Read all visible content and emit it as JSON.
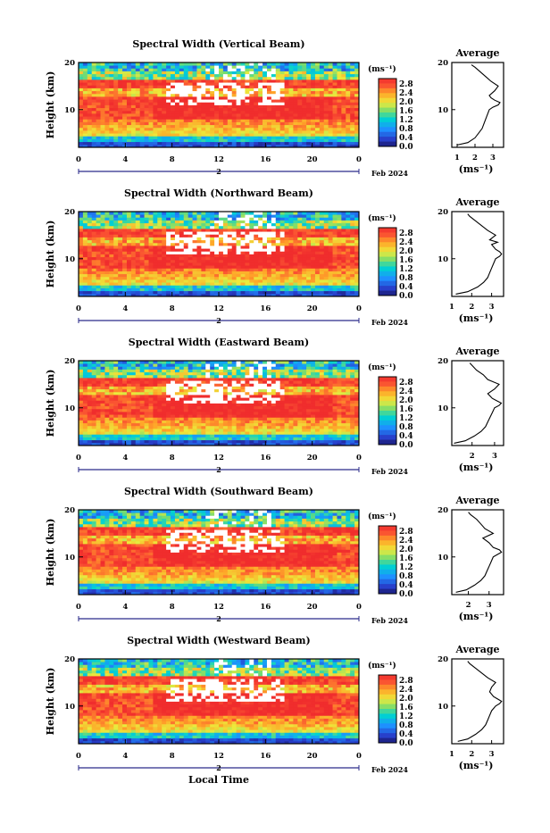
{
  "figure": {
    "xlabel": "Local Time",
    "colorbar": {
      "unit": "(ms⁻¹)",
      "ticks": [
        "2.8",
        "2.4",
        "2.0",
        "1.6",
        "1.2",
        "0.8",
        "0.4",
        "0.0"
      ]
    },
    "avg_title": "Average",
    "avg_xlabel": "(ms⁻¹)",
    "date_label": "Feb 2024",
    "day_label": "2"
  },
  "chart_data": [
    {
      "type": "heatmap",
      "title": "Spectral Width (Vertical Beam)",
      "ylabel": "Height (km)",
      "x_ticks": [
        "0",
        "4",
        "8",
        "12",
        "16",
        "20",
        "0"
      ],
      "y_ticks": [
        "20",
        "10"
      ],
      "xlim": [
        0,
        24
      ],
      "ylim": [
        2,
        20
      ],
      "color_range": [
        0.0,
        2.8
      ],
      "profile": {
        "title": "Average",
        "x_ticks": [
          "1",
          "2",
          "3"
        ],
        "xlim": [
          0.7,
          3.6
        ],
        "heights": [
          2.5,
          3,
          4,
          5,
          6,
          7,
          8,
          9,
          10,
          10.5,
          11,
          11.5,
          12,
          12.5,
          13,
          14,
          15,
          16,
          17,
          18,
          19,
          19.5
        ],
        "values": [
          1.0,
          1.6,
          2.0,
          2.2,
          2.4,
          2.5,
          2.6,
          2.7,
          2.8,
          3.0,
          3.3,
          3.4,
          3.1,
          2.9,
          2.8,
          3.1,
          3.3,
          2.9,
          2.6,
          2.3,
          2.0,
          1.8
        ]
      }
    },
    {
      "type": "heatmap",
      "title": "Spectral Width (Northward Beam)",
      "ylabel": "Height (km)",
      "x_ticks": [
        "0",
        "4",
        "8",
        "12",
        "16",
        "20",
        "0"
      ],
      "y_ticks": [
        "20",
        "10"
      ],
      "xlim": [
        0,
        24
      ],
      "ylim": [
        2,
        20
      ],
      "color_range": [
        0.0,
        2.8
      ],
      "profile": {
        "title": "Average",
        "x_ticks": [
          "1",
          "2",
          "3"
        ],
        "xlim": [
          1.0,
          3.6
        ],
        "heights": [
          2.5,
          3,
          4,
          5,
          6,
          7,
          8,
          9,
          10,
          10.5,
          11,
          11.5,
          12,
          13,
          13.5,
          14,
          15,
          16,
          17,
          18,
          19,
          19.5
        ],
        "values": [
          1.2,
          1.8,
          2.3,
          2.6,
          2.8,
          2.9,
          3.0,
          3.1,
          3.2,
          3.4,
          3.5,
          3.4,
          3.2,
          3.0,
          3.3,
          2.9,
          3.2,
          2.8,
          2.5,
          2.2,
          1.9,
          1.8
        ]
      }
    },
    {
      "type": "heatmap",
      "title": "Spectral Width (Eastward Beam)",
      "ylabel": "Height (km)",
      "x_ticks": [
        "0",
        "4",
        "8",
        "12",
        "16",
        "20",
        "0"
      ],
      "y_ticks": [
        "20",
        "10"
      ],
      "xlim": [
        0,
        24
      ],
      "ylim": [
        2,
        20
      ],
      "color_range": [
        0.0,
        2.8
      ],
      "profile": {
        "title": "Average",
        "x_ticks": [
          "2",
          "3"
        ],
        "xlim": [
          1.1,
          3.4
        ],
        "heights": [
          2.5,
          3,
          4,
          5,
          6,
          7,
          8,
          9,
          10,
          10.5,
          11,
          11.5,
          12,
          13,
          14,
          15,
          16,
          17,
          18,
          19,
          19.5
        ],
        "values": [
          1.2,
          1.7,
          2.1,
          2.4,
          2.6,
          2.7,
          2.8,
          2.9,
          3.0,
          3.2,
          3.3,
          3.1,
          2.9,
          2.7,
          3.0,
          3.2,
          2.7,
          2.5,
          2.2,
          2.0,
          1.9
        ]
      }
    },
    {
      "type": "heatmap",
      "title": "Spectral Width (Southward Beam)",
      "ylabel": "Height (km)",
      "x_ticks": [
        "0",
        "4",
        "8",
        "12",
        "16",
        "20",
        "0"
      ],
      "y_ticks": [
        "20",
        "10"
      ],
      "xlim": [
        0,
        24
      ],
      "ylim": [
        2,
        20
      ],
      "color_range": [
        0.0,
        2.8
      ],
      "profile": {
        "title": "Average",
        "x_ticks": [
          "2",
          "3"
        ],
        "xlim": [
          1.2,
          3.7
        ],
        "heights": [
          2.5,
          3,
          4,
          5,
          6,
          7,
          8,
          9,
          10,
          10.5,
          11,
          11.5,
          12,
          13,
          14,
          15,
          16,
          17,
          18,
          19,
          19.5
        ],
        "values": [
          1.4,
          1.9,
          2.3,
          2.6,
          2.8,
          2.9,
          3.0,
          3.1,
          3.2,
          3.4,
          3.6,
          3.5,
          3.2,
          3.0,
          2.7,
          3.2,
          2.8,
          2.6,
          2.4,
          2.1,
          2.0
        ]
      }
    },
    {
      "type": "heatmap",
      "title": "Spectral Width (Westward Beam)",
      "ylabel": "Height (km)",
      "x_ticks": [
        "0",
        "4",
        "8",
        "12",
        "16",
        "20",
        "0"
      ],
      "y_ticks": [
        "20",
        "10"
      ],
      "xlim": [
        0,
        24
      ],
      "ylim": [
        2,
        20
      ],
      "color_range": [
        0.0,
        2.8
      ],
      "profile": {
        "title": "Average",
        "x_ticks": [
          "1",
          "2",
          "3"
        ],
        "xlim": [
          1.0,
          3.6
        ],
        "heights": [
          2.5,
          3,
          4,
          5,
          6,
          7,
          8,
          9,
          10,
          10.5,
          11,
          11.5,
          12,
          13,
          14,
          15,
          16,
          17,
          18,
          19,
          19.5
        ],
        "values": [
          1.3,
          1.8,
          2.2,
          2.5,
          2.7,
          2.8,
          2.9,
          3.0,
          3.2,
          3.4,
          3.5,
          3.3,
          3.1,
          2.9,
          3.0,
          3.2,
          2.8,
          2.5,
          2.2,
          1.9,
          1.8
        ]
      }
    }
  ]
}
